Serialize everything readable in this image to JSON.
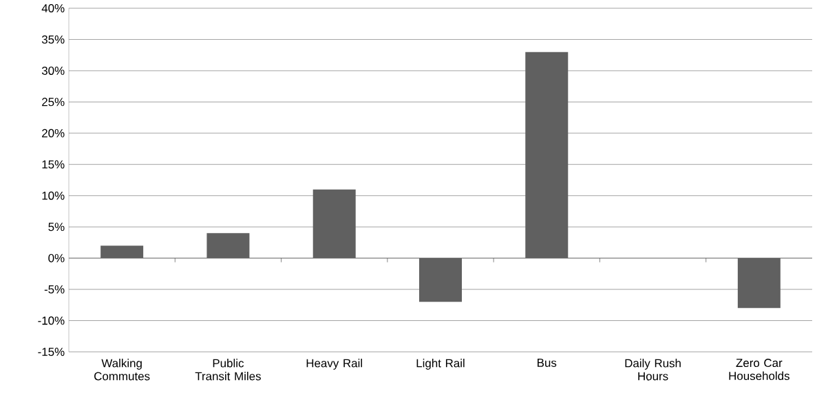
{
  "chart_data": {
    "type": "bar",
    "categories": [
      "Walking Commutes",
      "Public Transit Miles",
      "Heavy Rail",
      "Light Rail",
      "Bus",
      "Daily Rush Hours",
      "Zero Car Households"
    ],
    "values": [
      2,
      4,
      11,
      -7,
      33,
      0,
      -8
    ],
    "color": "#606060",
    "ylim": [
      -15,
      40
    ],
    "yticks": [
      {
        "value": -15,
        "label": "-15%"
      },
      {
        "value": -10,
        "label": "-10%"
      },
      {
        "value": -5,
        "label": "-5%"
      },
      {
        "value": 0,
        "label": "0%"
      },
      {
        "value": 5,
        "label": "5%"
      },
      {
        "value": 10,
        "label": "10%"
      },
      {
        "value": 15,
        "label": "15%"
      },
      {
        "value": 20,
        "label": "20%"
      },
      {
        "value": 25,
        "label": "25%"
      },
      {
        "value": 30,
        "label": "30%"
      },
      {
        "value": 35,
        "label": "35%"
      },
      {
        "value": 40,
        "label": "40%"
      }
    ],
    "grid": "y"
  }
}
